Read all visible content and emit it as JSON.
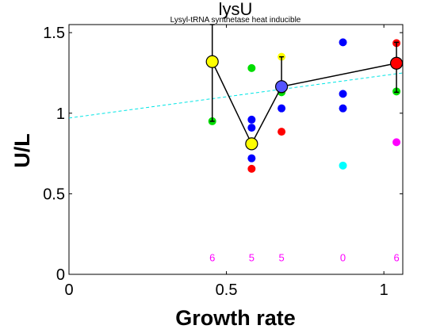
{
  "chart_data": {
    "type": "scatter",
    "title": "lysU",
    "subtitle": "Lysyl-tRNA synthetase  heat inducible",
    "xlabel": "Growth rate",
    "ylabel": "U/L",
    "xlim": [
      0,
      1.06
    ],
    "ylim": [
      0,
      1.55
    ],
    "xticks": [
      0,
      0.5,
      1
    ],
    "yticks": [
      0,
      0.5,
      1,
      1.5
    ],
    "tick_labels_x": [
      "0",
      "0.5",
      "1"
    ],
    "tick_labels_y": [
      "0",
      "0.5",
      "1",
      "1.5"
    ],
    "grid": false,
    "fit_line": {
      "color": "#00e5e5",
      "style": "dashed",
      "x": [
        0,
        1.06
      ],
      "y": [
        0.97,
        1.25
      ]
    },
    "mean_series": {
      "color": "#000000",
      "x": [
        0.455,
        0.58,
        0.675,
        1.04
      ],
      "y": [
        1.32,
        0.81,
        1.165,
        1.31
      ],
      "err_lo": [
        0.95,
        0.81,
        1.13,
        1.13
      ],
      "err_hi": [
        1.55,
        0.81,
        1.35,
        1.44
      ],
      "marker_colors": [
        "#ffff00",
        "#ffff00",
        "#5555ff",
        "#ff0000"
      ]
    },
    "series": [
      {
        "color": "#ff0000",
        "points": [
          [
            0.58,
            0.655
          ],
          [
            0.675,
            0.885
          ],
          [
            1.04,
            1.435
          ],
          [
            1.04,
            1.31
          ]
        ]
      },
      {
        "color": "#00dd00",
        "points": [
          [
            0.455,
            0.95
          ],
          [
            0.455,
            1.33
          ],
          [
            0.58,
            1.28
          ],
          [
            0.675,
            1.13
          ],
          [
            1.04,
            1.135
          ]
        ]
      },
      {
        "color": "#0000ff",
        "points": [
          [
            0.58,
            0.96
          ],
          [
            0.58,
            0.91
          ],
          [
            0.58,
            0.72
          ],
          [
            0.675,
            1.03
          ],
          [
            0.675,
            1.17
          ],
          [
            0.87,
            1.44
          ],
          [
            0.87,
            1.12
          ],
          [
            0.87,
            1.03
          ]
        ]
      },
      {
        "color": "#ffff00",
        "points": [
          [
            0.455,
            1.32
          ],
          [
            0.58,
            0.81
          ],
          [
            0.675,
            1.35
          ]
        ]
      },
      {
        "color": "#00ffff",
        "points": [
          [
            0.87,
            0.675
          ]
        ]
      },
      {
        "color": "#ff00ff",
        "points": [
          [
            1.04,
            0.82
          ]
        ]
      }
    ],
    "counts": {
      "color": "#ff00ff",
      "y": 0.1,
      "items": [
        {
          "x": 0.455,
          "label": "6"
        },
        {
          "x": 0.58,
          "label": "5"
        },
        {
          "x": 0.675,
          "label": "5"
        },
        {
          "x": 0.87,
          "label": "0"
        },
        {
          "x": 1.04,
          "label": "6"
        }
      ]
    }
  }
}
